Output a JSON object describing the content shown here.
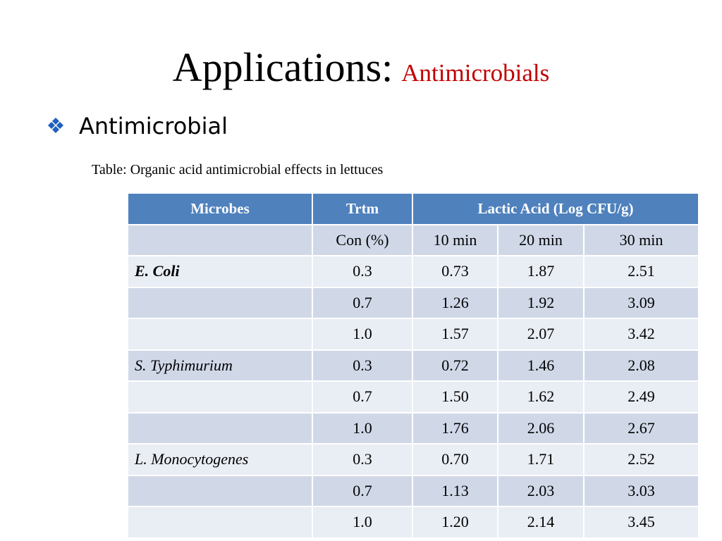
{
  "slide": {
    "title_main": "Applications:",
    "title_sub": "Antimicrobials",
    "bullet_text": "Antimicrobial",
    "bullet_icon": "diamond-bullet-icon",
    "caption": "Table: Organic acid antimicrobial effects in lettuces"
  },
  "colors": {
    "header_bg": "#4f81bd",
    "row_odd": "#d0d8e8",
    "row_even": "#e9edf4",
    "title_sub": "#c00000",
    "bullet": "#1f5fbf"
  },
  "table": {
    "headers": {
      "microbes": "Microbes",
      "trtm": "Trtm",
      "lactic": "Lactic Acid  (Log CFU/g)"
    },
    "subheader": [
      "",
      "Con (%)",
      "10 min",
      "20 min",
      "30 min"
    ],
    "rows": [
      [
        "E. Coli",
        "0.3",
        "0.73",
        "1.87",
        "2.51"
      ],
      [
        "",
        "0.7",
        "1.26",
        "1.92",
        "3.09"
      ],
      [
        "",
        "1.0",
        "1.57",
        "2.07",
        "3.42"
      ],
      [
        "S. Typhimurium",
        "0.3",
        "0.72",
        "1.46",
        "2.08"
      ],
      [
        "",
        "0.7",
        "1.50",
        "1.62",
        "2.49"
      ],
      [
        "",
        "1.0",
        "1.76",
        "2.06",
        "2.67"
      ],
      [
        "L. Monocytogenes",
        "0.3",
        "0.70",
        "1.71",
        "2.52"
      ],
      [
        "",
        "0.7",
        "1.13",
        "2.03",
        "3.03"
      ],
      [
        "",
        "1.0",
        "1.20",
        "2.14",
        "3.45"
      ]
    ]
  }
}
